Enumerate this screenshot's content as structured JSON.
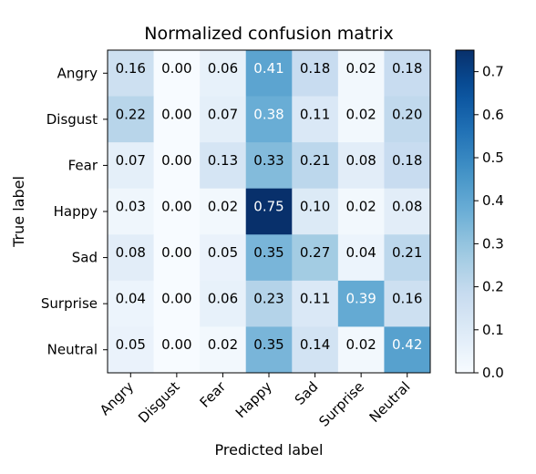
{
  "chart_data": {
    "type": "heatmap",
    "title": "Normalized confusion matrix",
    "xlabel": "Predicted label",
    "ylabel": "True label",
    "x_categories": [
      "Angry",
      "Disgust",
      "Fear",
      "Happy",
      "Sad",
      "Surprise",
      "Neutral"
    ],
    "y_categories": [
      "Angry",
      "Disgust",
      "Fear",
      "Happy",
      "Sad",
      "Surprise",
      "Neutral"
    ],
    "values": [
      [
        0.16,
        0.0,
        0.06,
        0.41,
        0.18,
        0.02,
        0.18
      ],
      [
        0.22,
        0.0,
        0.07,
        0.38,
        0.11,
        0.02,
        0.2
      ],
      [
        0.07,
        0.0,
        0.13,
        0.33,
        0.21,
        0.08,
        0.18
      ],
      [
        0.03,
        0.0,
        0.02,
        0.75,
        0.1,
        0.02,
        0.08
      ],
      [
        0.08,
        0.0,
        0.05,
        0.35,
        0.27,
        0.04,
        0.21
      ],
      [
        0.04,
        0.0,
        0.06,
        0.23,
        0.11,
        0.39,
        0.16
      ],
      [
        0.05,
        0.0,
        0.02,
        0.35,
        0.14,
        0.02,
        0.42
      ]
    ],
    "value_format": "0.00",
    "colormap": "Blues",
    "color_range": [
      0.0,
      0.75
    ],
    "colorbar_ticks": [
      0.0,
      0.1,
      0.2,
      0.3,
      0.4,
      0.5,
      0.6,
      0.7
    ],
    "colorbar_tick_labels": [
      "0.0",
      "0.1",
      "0.2",
      "0.3",
      "0.4",
      "0.5",
      "0.6",
      "0.7"
    ],
    "text_color_dark": "#000000",
    "text_color_light": "#ffffff",
    "grid": false
  }
}
